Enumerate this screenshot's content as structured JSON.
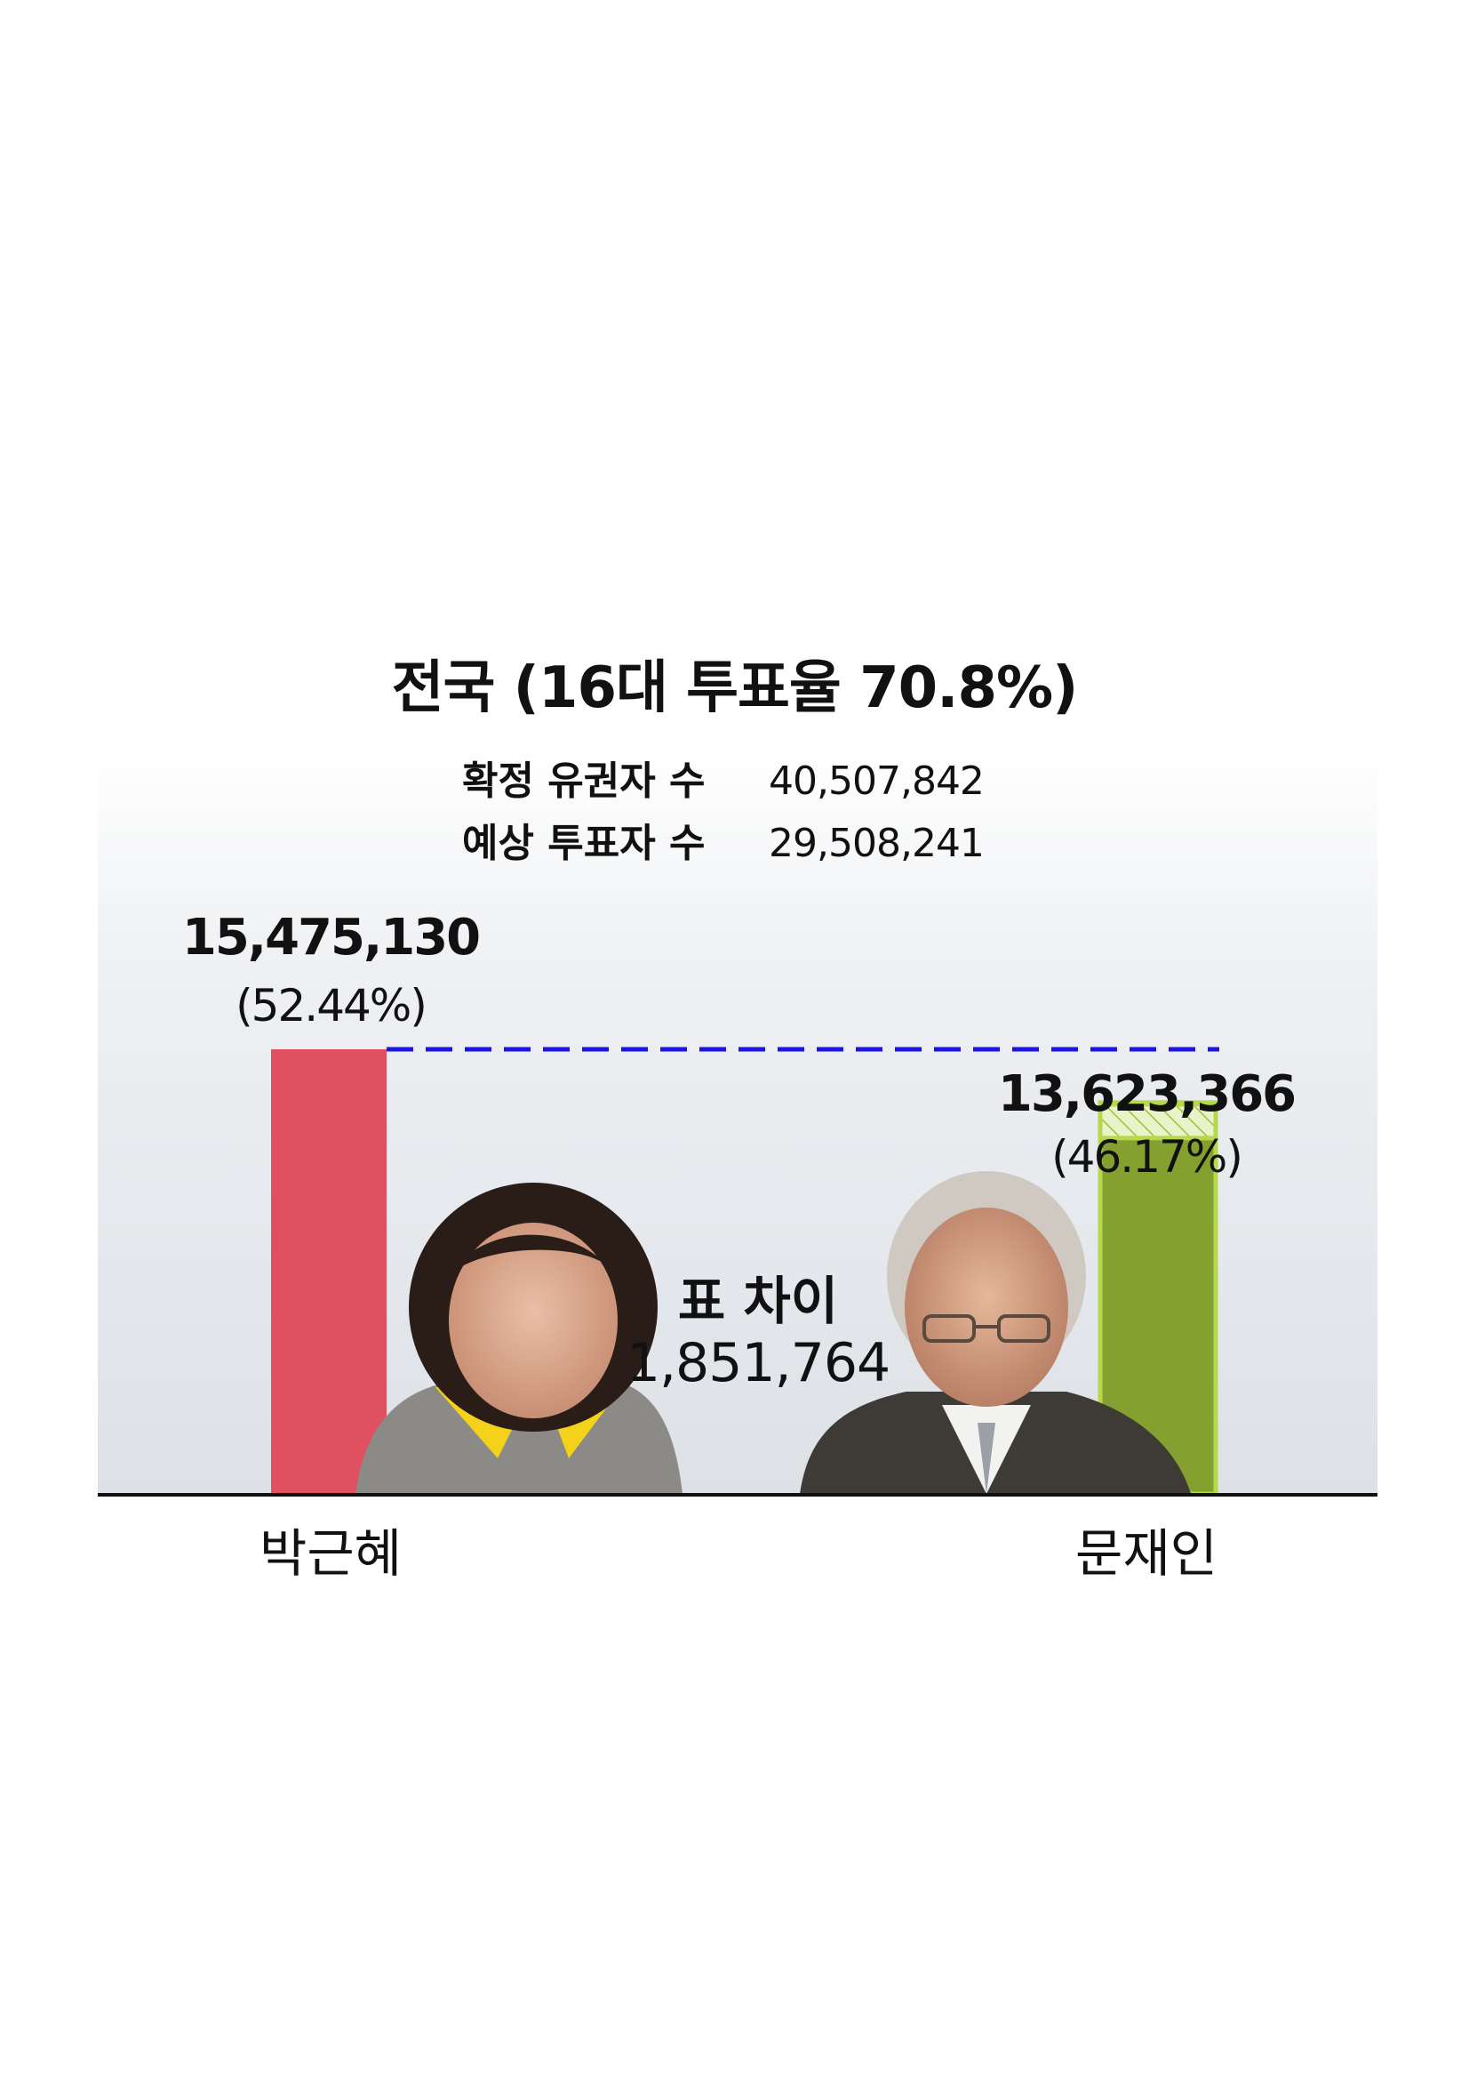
{
  "title": "전국 (16대 투표율 70.8%)",
  "info": {
    "registered_label": "확정 유권자 수",
    "registered_value": "40,507,842",
    "expected_label": "예상 투표자 수",
    "expected_value": "29,508,241"
  },
  "difference": {
    "label": "표 차이",
    "value": "1,851,764"
  },
  "chart_data": {
    "type": "bar",
    "title": "전국 (16대 투표율 70.8%)",
    "categories": [
      "박근혜",
      "문재인"
    ],
    "values": [
      15475130,
      13623366
    ],
    "value_labels": [
      "15,475,130",
      "13,623,366"
    ],
    "percent_labels": [
      "(52.44%)",
      "(46.17%)"
    ],
    "percents": [
      52.44,
      46.17
    ],
    "colors": [
      "#df5060",
      "#84a02e"
    ],
    "gap_hatch_color": "#b6d94a",
    "reference_line_color": "#1a16e0",
    "xlabel": "",
    "ylabel": ""
  }
}
